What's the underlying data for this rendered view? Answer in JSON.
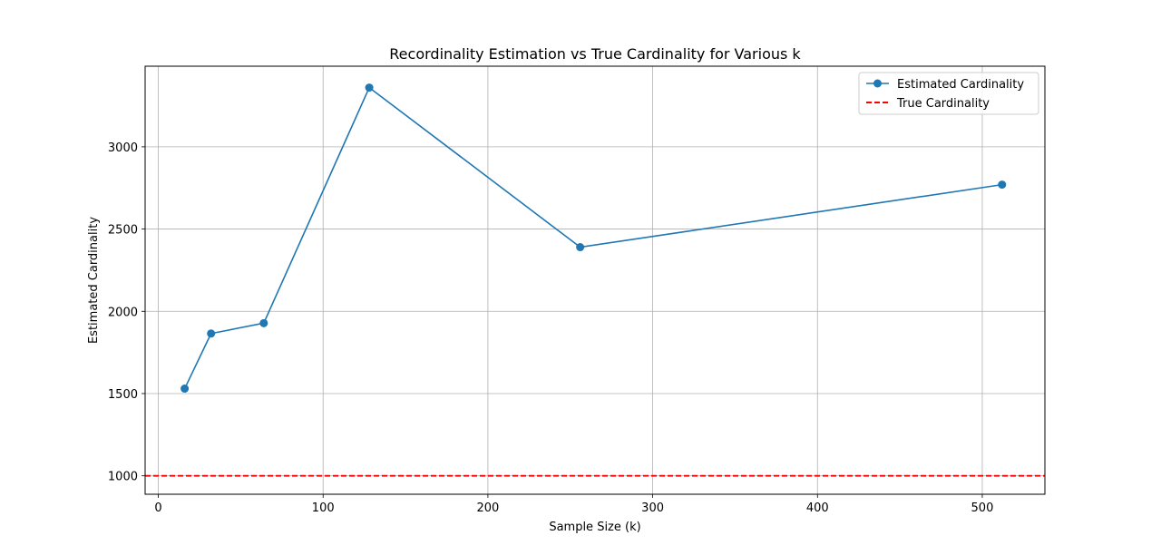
{
  "chart_data": {
    "type": "line",
    "title": "Recordinality Estimation vs True Cardinality for Various k",
    "xlabel": "Sample Size (k)",
    "ylabel": "Estimated Cardinality",
    "xlim": [
      -8,
      538
    ],
    "ylim": [
      888,
      3490
    ],
    "xticks": [
      0,
      100,
      200,
      300,
      400,
      500
    ],
    "yticks": [
      1000,
      1500,
      2000,
      2500,
      3000
    ],
    "grid": true,
    "legend_position": "top-right",
    "series": [
      {
        "name": "Estimated Cardinality",
        "color": "#1f77b4",
        "marker": "circle",
        "x": [
          16,
          32,
          64,
          128,
          256,
          512
        ],
        "y": [
          1530,
          1865,
          1928,
          3360,
          2390,
          2770
        ]
      }
    ],
    "reference_lines": [
      {
        "name": "True Cardinality",
        "color": "#ff0000",
        "style": "dashed",
        "y": 1000
      }
    ]
  }
}
